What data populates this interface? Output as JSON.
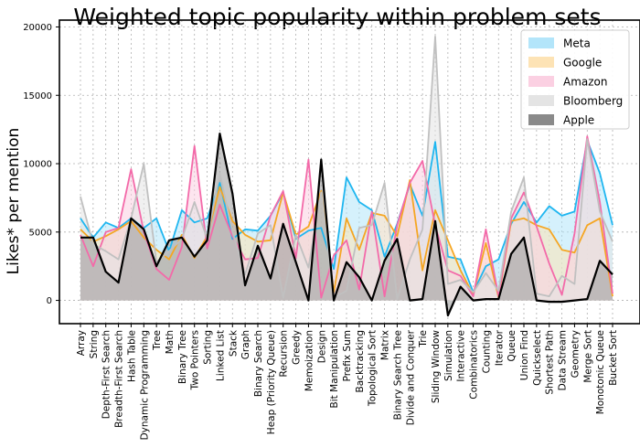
{
  "chart_data": {
    "type": "area",
    "title": "Weighted topic popularity within problem sets",
    "ylabel": "Likes* per mention",
    "xlabel": "",
    "ylim": [
      -1700,
      20500
    ],
    "yticks": [
      0,
      5000,
      10000,
      15000,
      20000
    ],
    "ytick_labels": [
      "0",
      "5000",
      "10000",
      "15000",
      "20000"
    ],
    "grid": true,
    "legend_position": "top-right",
    "categories": [
      "Array",
      "String",
      "Depth-First Search",
      "Breadth-First Search",
      "Hash Table",
      "Dynamic Programming",
      "Tree",
      "Math",
      "Binary Tree",
      "Two Pointers",
      "Sorting",
      "Linked List",
      "Stack",
      "Graph",
      "Binary Search",
      "Heap (Priority Queue)",
      "Recursion",
      "Greedy",
      "Memoization",
      "Design",
      "Bit Manipulation",
      "Prefix Sum",
      "Backtracking",
      "Topological Sort",
      "Matrix",
      "Binary Search Tree",
      "Divide and Conquer",
      "Trie",
      "Sliding Window",
      "Simulation",
      "Interactive",
      "Combinatorics",
      "Counting",
      "Iterator",
      "Queue",
      "Union Find",
      "Quickselect",
      "Shortest Path",
      "Data Stream",
      "Geometry",
      "Merge Sort",
      "Monotonic Queue",
      "Bucket Sort"
    ],
    "series": [
      {
        "name": "Meta",
        "color": "#1fb6f0",
        "fill": "#b3e5fa",
        "values": [
          6000,
          4600,
          5700,
          5300,
          6000,
          5300,
          6000,
          3600,
          6600,
          5700,
          6000,
          8600,
          4500,
          5200,
          5100,
          6200,
          7900,
          4500,
          5100,
          5300,
          2300,
          9000,
          7200,
          6600,
          3200,
          5600,
          8500,
          6200,
          11600,
          3200,
          3000,
          600,
          2500,
          3000,
          5600,
          7200,
          5700,
          6900,
          6200,
          6500,
          11700,
          9300,
          5500
        ]
      },
      {
        "name": "Google",
        "color": "#f5a623",
        "fill": "#fde3b5",
        "values": [
          5200,
          4300,
          4700,
          5200,
          5800,
          4600,
          3700,
          3000,
          4800,
          3100,
          4700,
          8300,
          5800,
          4800,
          4300,
          4400,
          7900,
          4800,
          5400,
          8000,
          600,
          6000,
          3700,
          6400,
          6200,
          4700,
          8800,
          2200,
          6600,
          4400,
          2200,
          400,
          4200,
          200,
          5800,
          6000,
          5500,
          5200,
          3700,
          3500,
          5500,
          6000,
          300
        ]
      },
      {
        "name": "Amazon",
        "color": "#f36aa9",
        "fill": "#fbd0e2",
        "values": [
          4800,
          2500,
          5000,
          5300,
          9600,
          5000,
          2300,
          1500,
          3900,
          11300,
          3800,
          7000,
          4700,
          3000,
          3100,
          6200,
          8000,
          3100,
          10300,
          200,
          3300,
          4400,
          800,
          6500,
          300,
          5500,
          8600,
          10200,
          5500,
          2200,
          1800,
          300,
          5200,
          300,
          6000,
          7900,
          5400,
          2700,
          400,
          4900,
          12000,
          7200,
          500
        ]
      },
      {
        "name": "Bloomberg",
        "color": "#c0c0c0",
        "fill": "#e4e4e4",
        "values": [
          7600,
          4100,
          3600,
          3000,
          6000,
          10000,
          2800,
          3600,
          4500,
          7200,
          4500,
          9300,
          5000,
          1900,
          4900,
          5500,
          200,
          4800,
          2400,
          7900,
          200,
          700,
          5300,
          5500,
          8600,
          100,
          3000,
          5200,
          19300,
          1200,
          1500,
          600,
          2000,
          700,
          6500,
          9000,
          500,
          300,
          1800,
          1200,
          11800,
          6500,
          4300
        ]
      },
      {
        "name": "Apple",
        "color": "#000000",
        "fill": "#9a9a9a",
        "values": [
          4600,
          4600,
          2100,
          1300,
          6000,
          5200,
          2500,
          4400,
          4600,
          3200,
          4400,
          12200,
          7800,
          1100,
          4000,
          1600,
          5600,
          2800,
          0,
          10300,
          0,
          2800,
          1700,
          0,
          2900,
          4500,
          0,
          100,
          5800,
          -1100,
          1000,
          0,
          100,
          100,
          3400,
          4600,
          0,
          -100,
          -100,
          0,
          100,
          2900,
          1900
        ]
      }
    ]
  }
}
